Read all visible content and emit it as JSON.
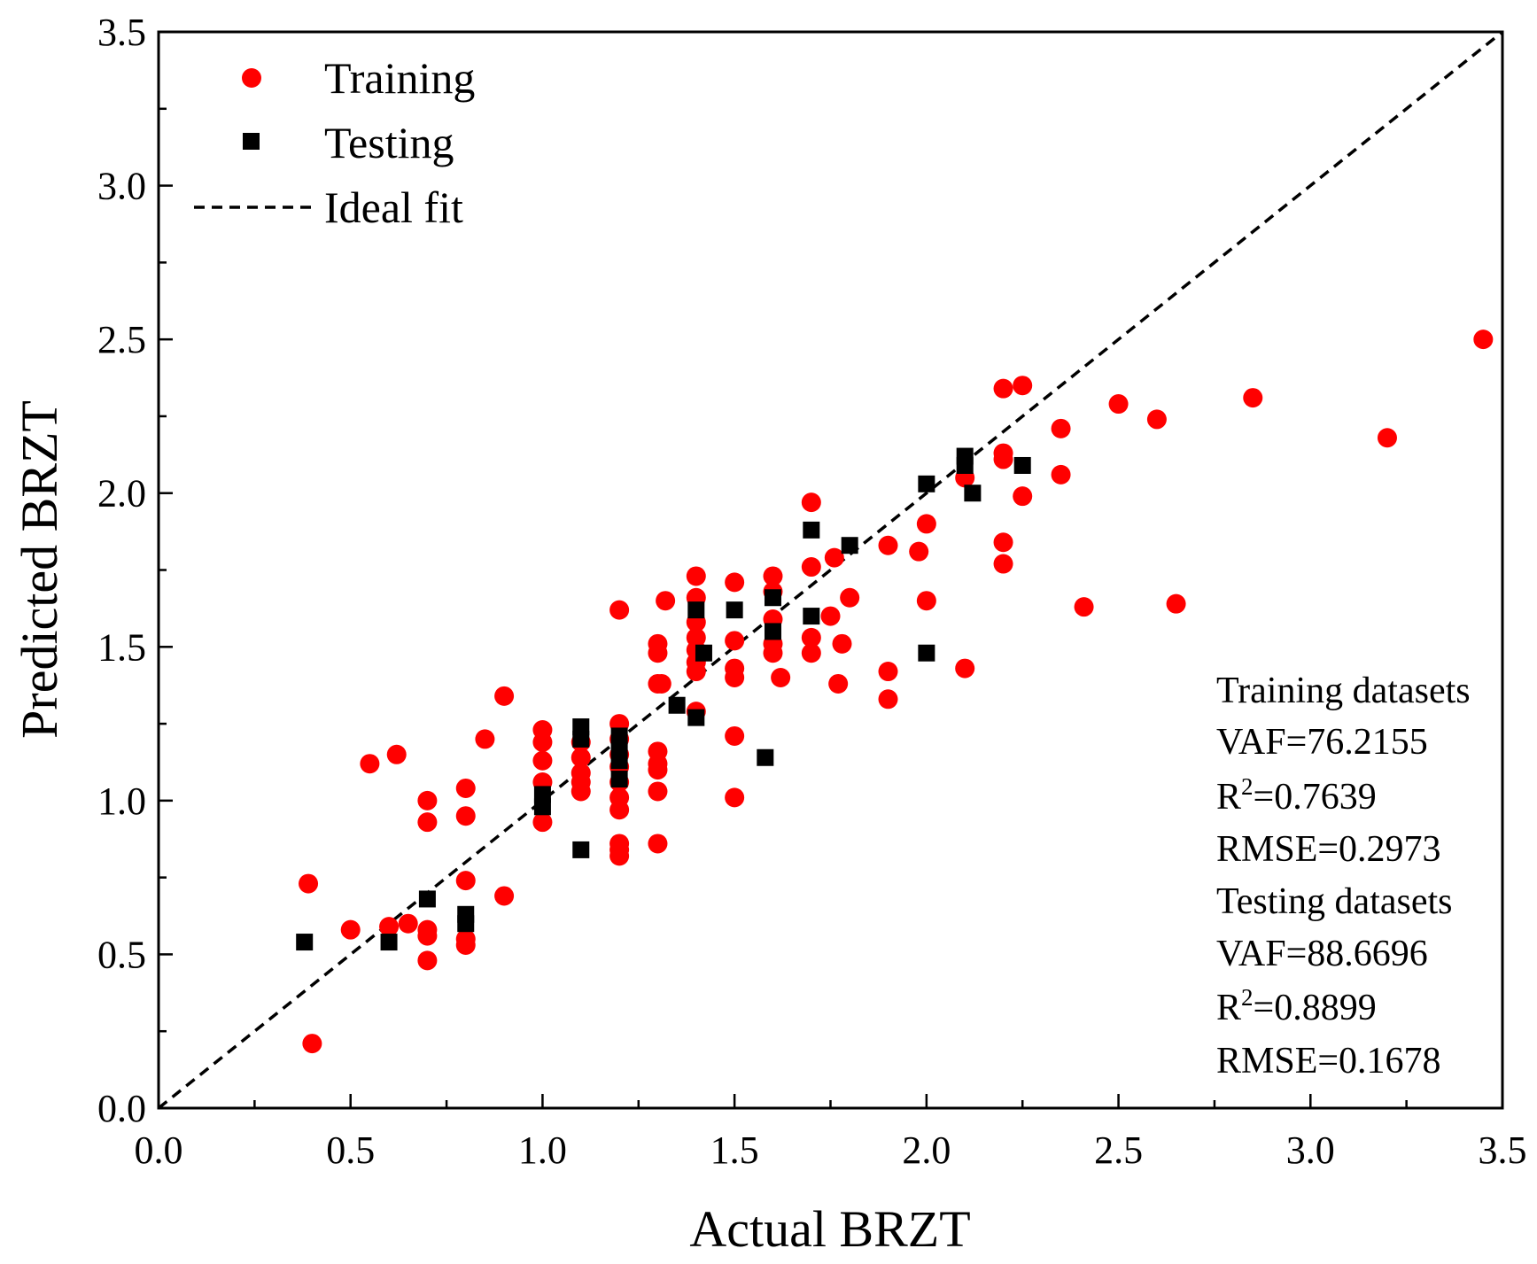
{
  "chart_data": {
    "type": "scatter",
    "xlabel": "Actual BRZT",
    "ylabel": "Predicted BRZT",
    "xlim": [
      0.0,
      3.5
    ],
    "ylim": [
      0.0,
      3.5
    ],
    "xticks": [
      "0.0",
      "0.5",
      "1.0",
      "1.5",
      "2.0",
      "2.5",
      "3.0",
      "3.5"
    ],
    "yticks": [
      "0.0",
      "0.5",
      "1.0",
      "1.5",
      "2.0",
      "2.5",
      "3.0",
      "3.5"
    ],
    "grid": false,
    "legend_position": "top-left",
    "legend": {
      "training": "Training",
      "testing": "Testing",
      "ideal": "Ideal fit"
    },
    "colors": {
      "training": "#ff0000",
      "testing": "#000000",
      "ideal": "#000000"
    },
    "series": [
      {
        "name": "Training",
        "marker": "circle",
        "points": [
          [
            0.39,
            0.73
          ],
          [
            0.4,
            0.21
          ],
          [
            0.5,
            0.58
          ],
          [
            0.55,
            1.12
          ],
          [
            0.6,
            0.59
          ],
          [
            0.62,
            1.15
          ],
          [
            0.65,
            0.6
          ],
          [
            0.7,
            1.0
          ],
          [
            0.7,
            0.93
          ],
          [
            0.7,
            0.58
          ],
          [
            0.7,
            0.56
          ],
          [
            0.7,
            0.48
          ],
          [
            0.8,
            1.04
          ],
          [
            0.8,
            0.95
          ],
          [
            0.8,
            0.74
          ],
          [
            0.8,
            0.55
          ],
          [
            0.8,
            0.53
          ],
          [
            0.85,
            1.2
          ],
          [
            0.9,
            1.34
          ],
          [
            0.9,
            0.69
          ],
          [
            1.0,
            1.23
          ],
          [
            1.0,
            1.19
          ],
          [
            1.0,
            1.13
          ],
          [
            1.0,
            1.06
          ],
          [
            1.0,
            0.93
          ],
          [
            1.1,
            1.19
          ],
          [
            1.1,
            1.14
          ],
          [
            1.1,
            1.09
          ],
          [
            1.1,
            1.06
          ],
          [
            1.1,
            1.03
          ],
          [
            1.2,
            1.62
          ],
          [
            1.2,
            1.25
          ],
          [
            1.2,
            1.2
          ],
          [
            1.2,
            1.15
          ],
          [
            1.2,
            1.11
          ],
          [
            1.2,
            1.06
          ],
          [
            1.2,
            1.01
          ],
          [
            1.2,
            0.97
          ],
          [
            1.2,
            0.86
          ],
          [
            1.2,
            0.84
          ],
          [
            1.2,
            0.82
          ],
          [
            1.3,
            1.51
          ],
          [
            1.3,
            1.48
          ],
          [
            1.3,
            1.38
          ],
          [
            1.3,
            1.16
          ],
          [
            1.3,
            1.12
          ],
          [
            1.3,
            1.1
          ],
          [
            1.3,
            1.03
          ],
          [
            1.3,
            0.86
          ],
          [
            1.31,
            1.38
          ],
          [
            1.32,
            1.65
          ],
          [
            1.4,
            1.73
          ],
          [
            1.4,
            1.66
          ],
          [
            1.4,
            1.58
          ],
          [
            1.4,
            1.53
          ],
          [
            1.4,
            1.49
          ],
          [
            1.4,
            1.45
          ],
          [
            1.4,
            1.42
          ],
          [
            1.4,
            1.29
          ],
          [
            1.5,
            1.71
          ],
          [
            1.5,
            1.52
          ],
          [
            1.5,
            1.43
          ],
          [
            1.5,
            1.4
          ],
          [
            1.5,
            1.21
          ],
          [
            1.5,
            1.01
          ],
          [
            1.6,
            1.73
          ],
          [
            1.6,
            1.68
          ],
          [
            1.6,
            1.59
          ],
          [
            1.6,
            1.51
          ],
          [
            1.6,
            1.48
          ],
          [
            1.62,
            1.4
          ],
          [
            1.7,
            1.97
          ],
          [
            1.7,
            1.76
          ],
          [
            1.7,
            1.53
          ],
          [
            1.7,
            1.48
          ],
          [
            1.75,
            1.6
          ],
          [
            1.76,
            1.79
          ],
          [
            1.77,
            1.38
          ],
          [
            1.78,
            1.51
          ],
          [
            1.8,
            1.66
          ],
          [
            1.9,
            1.83
          ],
          [
            1.9,
            1.42
          ],
          [
            1.9,
            1.33
          ],
          [
            1.98,
            1.81
          ],
          [
            2.0,
            1.9
          ],
          [
            2.0,
            1.65
          ],
          [
            2.1,
            2.05
          ],
          [
            2.1,
            1.43
          ],
          [
            2.2,
            2.34
          ],
          [
            2.2,
            2.13
          ],
          [
            2.2,
            2.11
          ],
          [
            2.2,
            1.84
          ],
          [
            2.2,
            1.77
          ],
          [
            2.25,
            2.35
          ],
          [
            2.25,
            1.99
          ],
          [
            2.35,
            2.21
          ],
          [
            2.35,
            2.06
          ],
          [
            2.41,
            1.63
          ],
          [
            2.5,
            2.29
          ],
          [
            2.6,
            2.24
          ],
          [
            2.65,
            1.64
          ],
          [
            2.85,
            2.31
          ],
          [
            3.2,
            2.18
          ],
          [
            3.45,
            2.5
          ]
        ]
      },
      {
        "name": "Testing",
        "marker": "square",
        "points": [
          [
            0.38,
            0.54
          ],
          [
            0.6,
            0.54
          ],
          [
            0.7,
            0.68
          ],
          [
            0.8,
            0.63
          ],
          [
            0.8,
            0.6
          ],
          [
            1.0,
            1.02
          ],
          [
            1.0,
            0.98
          ],
          [
            1.1,
            1.24
          ],
          [
            1.1,
            1.2
          ],
          [
            1.1,
            0.84
          ],
          [
            1.2,
            1.21
          ],
          [
            1.2,
            1.17
          ],
          [
            1.2,
            1.13
          ],
          [
            1.2,
            1.07
          ],
          [
            1.35,
            1.31
          ],
          [
            1.4,
            1.62
          ],
          [
            1.4,
            1.27
          ],
          [
            1.42,
            1.48
          ],
          [
            1.5,
            1.62
          ],
          [
            1.58,
            1.14
          ],
          [
            1.6,
            1.66
          ],
          [
            1.6,
            1.55
          ],
          [
            1.7,
            1.88
          ],
          [
            1.7,
            1.6
          ],
          [
            1.8,
            1.83
          ],
          [
            2.0,
            2.03
          ],
          [
            2.0,
            1.48
          ],
          [
            2.1,
            2.12
          ],
          [
            2.1,
            2.09
          ],
          [
            2.12,
            2.0
          ],
          [
            2.25,
            2.09
          ]
        ]
      }
    ],
    "ideal_line": [
      [
        0.0,
        0.0
      ],
      [
        3.5,
        3.5
      ]
    ],
    "stats": {
      "training_header": "Training datasets",
      "training_vaf": "VAF=76.2155",
      "training_r2_prefix": "R",
      "training_r2_sup": "2",
      "training_r2_value": "=0.7639",
      "training_rmse": "RMSE=0.2973",
      "testing_header": "Testing datasets",
      "testing_vaf": "VAF=88.6696",
      "testing_r2_prefix": "R",
      "testing_r2_sup": "2",
      "testing_r2_value": "=0.8899",
      "testing_rmse": "RMSE=0.1678"
    }
  }
}
